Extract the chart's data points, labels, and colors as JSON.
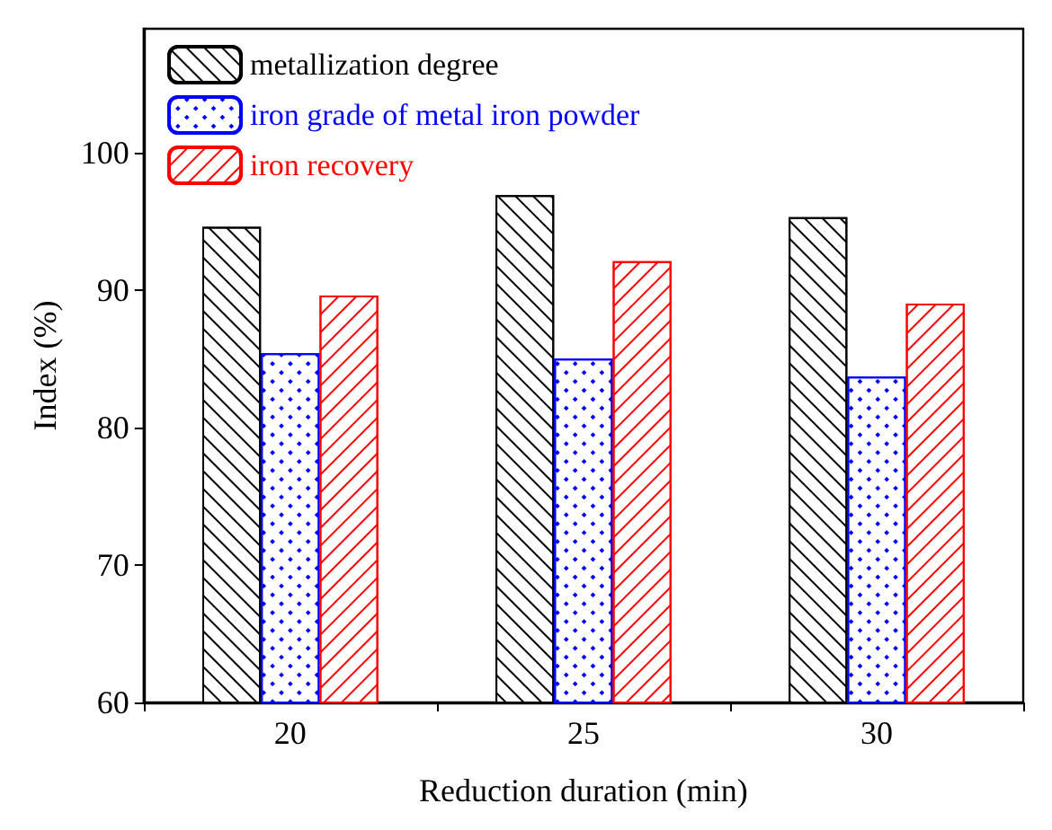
{
  "chart_data": {
    "type": "bar",
    "xlabel": "Reduction duration (min)",
    "ylabel": "Index (%)",
    "categories": [
      "20",
      "25",
      "30"
    ],
    "series": [
      {
        "name": "metallization degree",
        "color": "#000000",
        "values": [
          94.6,
          96.9,
          95.3
        ]
      },
      {
        "name": "iron grade of metal iron powder",
        "color": "#0000ff",
        "values": [
          85.4,
          85.0,
          83.7
        ]
      },
      {
        "name": "iron recovery",
        "color": "#ff0000",
        "values": [
          89.6,
          92.1,
          89.0
        ]
      }
    ],
    "ylim": [
      60,
      109
    ],
    "yticks": [
      60,
      70,
      80,
      90,
      100
    ],
    "grid": false,
    "legend": "top left"
  }
}
